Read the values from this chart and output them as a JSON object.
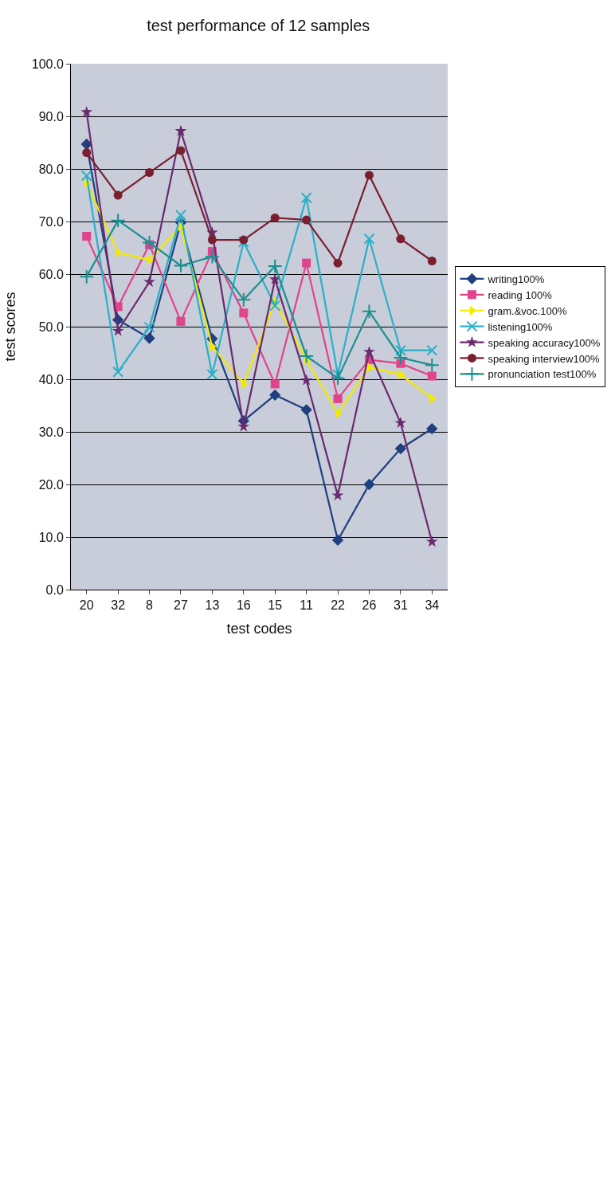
{
  "chart_data": {
    "type": "line",
    "title": "test performance of 12 samples",
    "xlabel": "test codes",
    "ylabel": "test scores",
    "categories": [
      "20",
      "32",
      "8",
      "27",
      "13",
      "16",
      "15",
      "11",
      "22",
      "26",
      "31",
      "34"
    ],
    "ylim": [
      0,
      100
    ],
    "yticks": [
      {
        "value": 0,
        "label": "0.0"
      },
      {
        "value": 10,
        "label": "10.0"
      },
      {
        "value": 20,
        "label": "20.0"
      },
      {
        "value": 30,
        "label": "30.0"
      },
      {
        "value": 40,
        "label": "40.0"
      },
      {
        "value": 50,
        "label": "50.0"
      },
      {
        "value": 60,
        "label": "60.0"
      },
      {
        "value": 70,
        "label": "70.0"
      },
      {
        "value": 80,
        "label": "80.0"
      },
      {
        "value": 90,
        "label": "90.0"
      },
      {
        "value": 100,
        "label": "100.0"
      }
    ],
    "grid": "y",
    "legend": "right",
    "line_style": "solid",
    "series": [
      {
        "name": "writing100%",
        "color": "#1f3f7f",
        "marker": "diamond",
        "values": [
          84.7,
          51.3,
          47.8,
          69.8,
          47.7,
          32.1,
          37.0,
          34.2,
          9.4,
          20.0,
          26.8,
          30.6
        ]
      },
      {
        "name": "reading 100%",
        "color": "#e0448c",
        "marker": "square",
        "values": [
          67.2,
          53.8,
          65.6,
          51.0,
          64.3,
          52.6,
          39.1,
          62.1,
          36.3,
          43.7,
          43.0,
          40.6
        ]
      },
      {
        "name": "gram.&voc.100%",
        "color": "#f2ea00",
        "marker": "triangle",
        "values": [
          77.3,
          64.1,
          62.7,
          69.1,
          46.2,
          39.1,
          54.8,
          43.7,
          33.5,
          42.3,
          40.9,
          36.3
        ]
      },
      {
        "name": "listening100%",
        "color": "#2ab0c8",
        "marker": "x",
        "values": [
          78.7,
          41.4,
          49.9,
          71.2,
          40.9,
          66.1,
          54.0,
          74.5,
          40.9,
          66.7,
          45.5,
          45.5
        ]
      },
      {
        "name": "speaking accuracy100%",
        "color": "#6a2a6e",
        "marker": "star",
        "values": [
          90.8,
          49.2,
          58.5,
          87.2,
          67.9,
          31.0,
          59.0,
          39.8,
          17.9,
          45.2,
          31.7,
          9.1
        ]
      },
      {
        "name": "speaking interview100%",
        "color": "#7a1f2f",
        "marker": "circle",
        "values": [
          83.1,
          75.0,
          79.3,
          83.5,
          66.5,
          66.5,
          70.7,
          70.3,
          62.1,
          78.8,
          66.7,
          62.5
        ]
      },
      {
        "name": "pronunciation test100%",
        "color": "#1a9090",
        "marker": "cross",
        "values": [
          59.5,
          70.2,
          66.0,
          61.6,
          63.3,
          55.1,
          61.5,
          44.4,
          40.2,
          52.9,
          44.1,
          42.7
        ]
      }
    ]
  }
}
